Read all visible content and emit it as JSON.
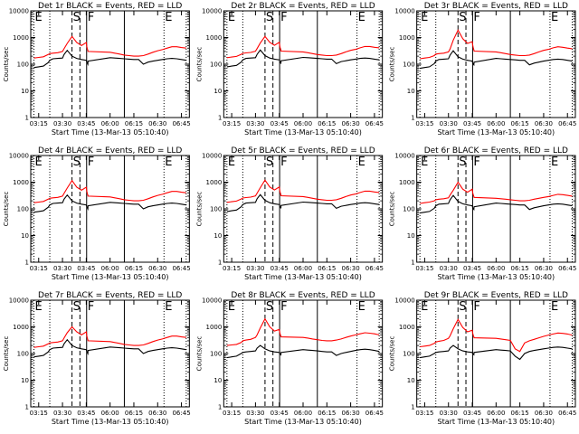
{
  "chart_data": {
    "type": "line",
    "layout": "3x3 grid",
    "y_scale": "log",
    "ylim": [
      1,
      10000
    ],
    "yticks": [
      "1",
      "10",
      "100",
      "1000",
      "10000"
    ],
    "xlim": [
      "03:10",
      "06:50"
    ],
    "xticks": [
      "03:15",
      "03:30",
      "03:45",
      "06:00",
      "06:15",
      "06:30",
      "06:45"
    ],
    "xlabel": "Start Time (13-Mar-13 05:10:40)",
    "ylabel": "Counts/sec",
    "series_colors": {
      "Events": "#000000",
      "LLD": "#ff0000"
    },
    "markers": [
      {
        "label": "E",
        "time": "03:12",
        "style": "dotted"
      },
      {
        "label": "",
        "time": "03:22",
        "style": "dotted"
      },
      {
        "label": "S",
        "time": "03:36",
        "style": "dashed"
      },
      {
        "label": "",
        "time": "03:41",
        "style": "dashed"
      },
      {
        "label": "F",
        "time": "03:47",
        "style": "solid"
      },
      {
        "label": "",
        "time": "06:09",
        "style": "solid"
      },
      {
        "label": "E",
        "time": "06:34",
        "style": "dotted"
      },
      {
        "label": "",
        "time": "06:48",
        "style": "dotted"
      }
    ],
    "x": [
      "03:12",
      "03:15",
      "03:18",
      "03:21",
      "03:22",
      "03:24",
      "03:27",
      "03:30",
      "03:31",
      "03:33",
      "03:36",
      "03:39",
      "03:42",
      "03:45",
      "03:48",
      "03:51",
      "03:54",
      "03:55",
      "06:00",
      "06:03",
      "06:06",
      "06:09",
      "06:12",
      "06:15",
      "06:18",
      "06:21",
      "06:24",
      "06:27",
      "06:30",
      "06:33",
      "06:36",
      "06:39",
      "06:42",
      "06:45",
      "06:48"
    ],
    "panels": [
      {
        "title": "Det 1r BLACK = Events, RED = LLD",
        "events": [
          75,
          80,
          85,
          115,
          140,
          160,
          165,
          170,
          230,
          330,
          200,
          165,
          150,
          140,
          120,
          110,
          100,
          130,
          175,
          170,
          165,
          160,
          155,
          150,
          150,
          100,
          120,
          130,
          140,
          150,
          160,
          165,
          160,
          150,
          140
        ],
        "lld": [
          170,
          180,
          190,
          230,
          250,
          260,
          270,
          300,
          380,
          600,
          1100,
          650,
          500,
          650,
          450,
          380,
          330,
          300,
          280,
          260,
          240,
          220,
          210,
          200,
          200,
          210,
          240,
          280,
          320,
          350,
          400,
          450,
          450,
          420,
          400
        ]
      },
      {
        "title": "Det 2r BLACK = Events, RED = LLD",
        "events": [
          80,
          85,
          90,
          120,
          145,
          165,
          170,
          175,
          235,
          340,
          210,
          170,
          155,
          145,
          125,
          115,
          105,
          135,
          180,
          175,
          170,
          165,
          160,
          155,
          155,
          105,
          125,
          135,
          145,
          155,
          165,
          170,
          165,
          155,
          145
        ],
        "lld": [
          175,
          185,
          195,
          235,
          255,
          265,
          275,
          305,
          385,
          620,
          1100,
          660,
          510,
          660,
          460,
          390,
          340,
          310,
          290,
          270,
          250,
          230,
          220,
          210,
          210,
          220,
          250,
          290,
          330,
          360,
          410,
          460,
          460,
          430,
          410
        ]
      },
      {
        "title": "Det 3r BLACK = Events, RED = LLD",
        "events": [
          70,
          75,
          80,
          105,
          130,
          150,
          155,
          160,
          220,
          320,
          190,
          155,
          140,
          130,
          110,
          100,
          95,
          120,
          165,
          160,
          155,
          150,
          145,
          140,
          140,
          95,
          110,
          120,
          130,
          140,
          150,
          155,
          150,
          140,
          130
        ],
        "lld": [
          160,
          170,
          180,
          210,
          240,
          250,
          260,
          290,
          370,
          800,
          1900,
          900,
          600,
          700,
          500,
          400,
          340,
          310,
          290,
          270,
          250,
          230,
          220,
          210,
          210,
          220,
          250,
          290,
          330,
          360,
          410,
          450,
          430,
          400,
          380
        ]
      },
      {
        "title": "Det 4r BLACK = Events, RED = LLD",
        "events": [
          75,
          80,
          85,
          115,
          140,
          160,
          165,
          170,
          230,
          330,
          200,
          165,
          150,
          140,
          120,
          110,
          100,
          130,
          175,
          170,
          165,
          160,
          155,
          150,
          150,
          100,
          120,
          130,
          140,
          150,
          160,
          165,
          160,
          150,
          140
        ],
        "lld": [
          170,
          180,
          190,
          230,
          250,
          260,
          270,
          300,
          380,
          600,
          1150,
          650,
          500,
          650,
          450,
          380,
          330,
          300,
          280,
          260,
          240,
          220,
          210,
          200,
          200,
          210,
          240,
          280,
          320,
          350,
          400,
          450,
          450,
          420,
          400
        ]
      },
      {
        "title": "Det 5r BLACK = Events, RED = LLD",
        "events": [
          80,
          85,
          90,
          120,
          145,
          165,
          170,
          175,
          240,
          340,
          210,
          170,
          155,
          145,
          125,
          115,
          105,
          135,
          180,
          175,
          170,
          165,
          160,
          155,
          155,
          105,
          125,
          135,
          145,
          155,
          165,
          170,
          165,
          155,
          145
        ],
        "lld": [
          175,
          185,
          195,
          235,
          255,
          265,
          275,
          305,
          390,
          620,
          1200,
          660,
          510,
          660,
          460,
          390,
          340,
          310,
          290,
          270,
          250,
          230,
          220,
          210,
          210,
          220,
          250,
          290,
          330,
          360,
          410,
          460,
          460,
          430,
          410
        ]
      },
      {
        "title": "Det 6r BLACK = Events, RED = LLD",
        "events": [
          70,
          75,
          80,
          105,
          130,
          150,
          155,
          160,
          220,
          320,
          190,
          155,
          140,
          130,
          110,
          100,
          95,
          120,
          165,
          160,
          155,
          150,
          145,
          140,
          140,
          95,
          110,
          120,
          130,
          140,
          150,
          155,
          150,
          140,
          130
        ],
        "lld": [
          160,
          170,
          180,
          200,
          220,
          230,
          240,
          260,
          330,
          500,
          1000,
          550,
          420,
          550,
          390,
          330,
          290,
          270,
          250,
          240,
          230,
          220,
          210,
          200,
          200,
          210,
          230,
          250,
          270,
          290,
          320,
          350,
          340,
          320,
          300
        ]
      },
      {
        "title": "Det 7r BLACK = Events, RED = LLD",
        "events": [
          75,
          80,
          85,
          115,
          140,
          160,
          165,
          170,
          230,
          330,
          200,
          165,
          150,
          140,
          120,
          110,
          100,
          130,
          175,
          170,
          165,
          160,
          155,
          150,
          150,
          100,
          120,
          130,
          140,
          150,
          160,
          165,
          160,
          150,
          140
        ],
        "lld": [
          170,
          180,
          190,
          230,
          250,
          260,
          270,
          300,
          380,
          600,
          1000,
          650,
          500,
          650,
          450,
          380,
          330,
          300,
          280,
          260,
          240,
          220,
          210,
          200,
          200,
          210,
          240,
          280,
          320,
          350,
          400,
          450,
          450,
          420,
          400
        ]
      },
      {
        "title": "Det 8r BLACK = Events, RED = LLD",
        "events": [
          70,
          75,
          80,
          100,
          110,
          115,
          120,
          125,
          160,
          200,
          150,
          125,
          115,
          110,
          100,
          95,
          90,
          110,
          140,
          135,
          130,
          125,
          120,
          115,
          115,
          85,
          100,
          110,
          120,
          130,
          140,
          145,
          140,
          130,
          120
        ],
        "lld": [
          200,
          210,
          220,
          260,
          300,
          320,
          340,
          400,
          500,
          900,
          2000,
          1000,
          700,
          800,
          600,
          500,
          450,
          420,
          400,
          380,
          350,
          330,
          310,
          300,
          300,
          320,
          350,
          400,
          450,
          500,
          550,
          600,
          580,
          550,
          500
        ]
      },
      {
        "title": "Det 9r BLACK = Events, RED = LLD",
        "events": [
          70,
          75,
          80,
          100,
          110,
          115,
          120,
          125,
          160,
          200,
          150,
          125,
          115,
          110,
          100,
          95,
          90,
          110,
          140,
          135,
          130,
          125,
          80,
          60,
          100,
          120,
          130,
          140,
          150,
          160,
          170,
          175,
          170,
          160,
          150
        ],
        "lld": [
          180,
          190,
          200,
          240,
          270,
          290,
          310,
          370,
          460,
          850,
          1900,
          950,
          650,
          750,
          560,
          470,
          420,
          390,
          370,
          350,
          330,
          310,
          150,
          120,
          250,
          300,
          340,
          390,
          440,
          490,
          540,
          590,
          570,
          540,
          490
        ]
      }
    ]
  }
}
